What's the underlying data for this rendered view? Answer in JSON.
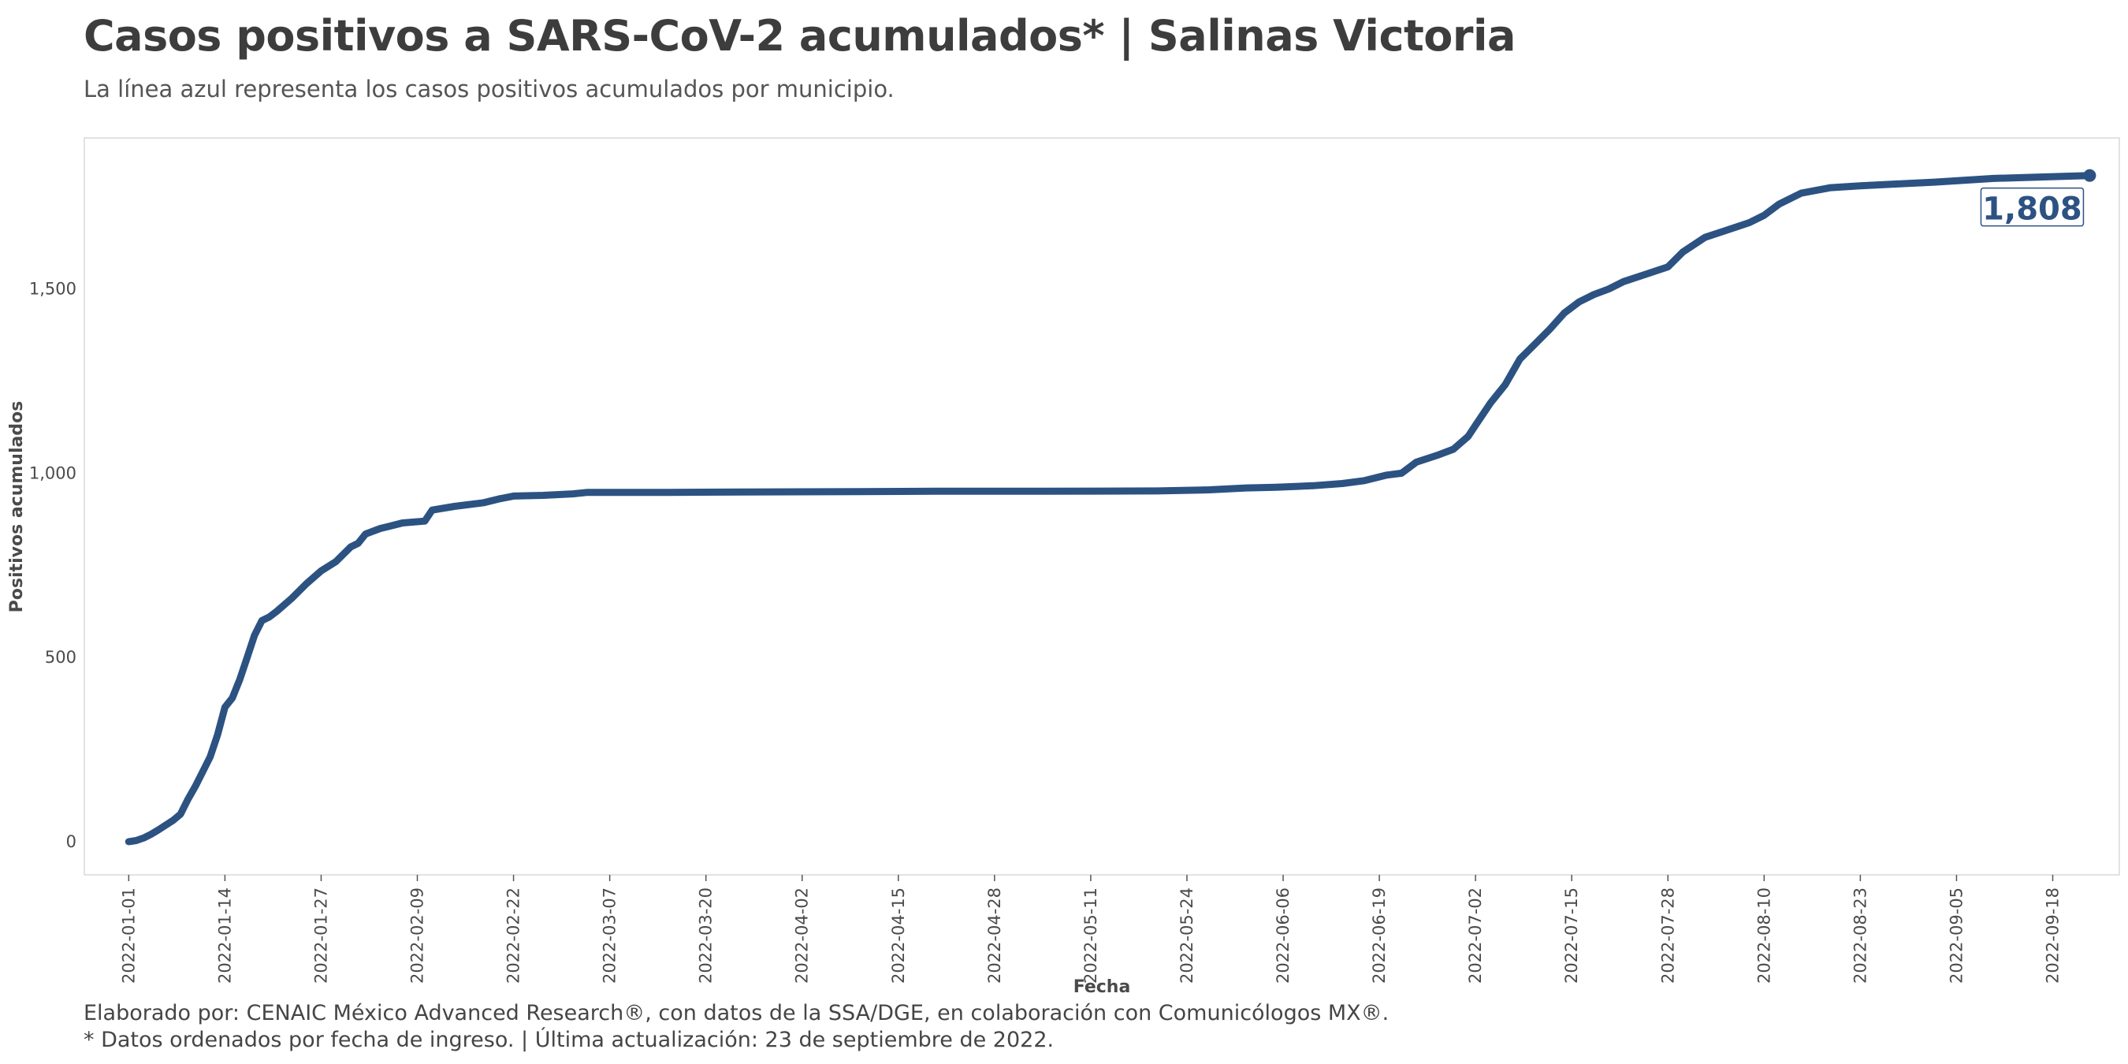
{
  "header": {
    "title": "Casos positivos a SARS-CoV-2 acumulados* | Salinas Victoria",
    "subtitle": "La línea azul representa los casos positivos acumulados por municipio."
  },
  "footer": {
    "caption_line1": "Elaborado por: CENAIC México Advanced Research®, con datos de la SSA/DGE, en colaboración con Comunicólogos MX®.",
    "caption_line2": "* Datos ordenados por fecha de ingreso. | Última actualización: 23 de septiembre de 2022."
  },
  "colors": {
    "line": "#2c5282",
    "panel_border": "#d8d8d8"
  },
  "chart_data": {
    "type": "line",
    "title": "Casos positivos a SARS-CoV-2 acumulados* | Salinas Victoria",
    "subtitle": "La línea azul representa los casos positivos acumulados por municipio.",
    "xlabel": "Fecha",
    "ylabel": "Positivos acumulados",
    "x_type": "date",
    "xlim": [
      "2021-12-26",
      "2022-09-27"
    ],
    "ylim": [
      -90,
      1910
    ],
    "x_ticks": [
      "2022-01-01",
      "2022-01-14",
      "2022-01-27",
      "2022-02-09",
      "2022-02-22",
      "2022-03-07",
      "2022-03-20",
      "2022-04-02",
      "2022-04-15",
      "2022-04-28",
      "2022-05-11",
      "2022-05-24",
      "2022-06-06",
      "2022-06-19",
      "2022-07-02",
      "2022-07-15",
      "2022-07-28",
      "2022-08-10",
      "2022-08-23",
      "2022-09-05",
      "2022-09-18"
    ],
    "y_ticks": [
      0,
      500,
      1000,
      1500
    ],
    "y_tick_labels": [
      "0",
      "500",
      "1,000",
      "1,500"
    ],
    "grid": false,
    "end_label": "1,808",
    "series": [
      {
        "x": [
          "2022-01-01",
          "2022-01-02",
          "2022-01-03",
          "2022-01-04",
          "2022-01-05",
          "2022-01-06",
          "2022-01-07",
          "2022-01-08",
          "2022-01-09",
          "2022-01-10",
          "2022-01-11",
          "2022-01-12",
          "2022-01-13",
          "2022-01-14",
          "2022-01-15",
          "2022-01-16",
          "2022-01-17",
          "2022-01-18",
          "2022-01-19",
          "2022-01-20",
          "2022-01-21",
          "2022-01-23",
          "2022-01-25",
          "2022-01-27",
          "2022-01-29",
          "2022-01-31",
          "2022-02-01",
          "2022-02-02",
          "2022-02-04",
          "2022-02-05",
          "2022-02-07",
          "2022-02-10",
          "2022-02-11",
          "2022-02-14",
          "2022-02-18",
          "2022-02-20",
          "2022-02-22",
          "2022-02-26",
          "2022-03-02",
          "2022-03-04",
          "2022-03-15",
          "2022-03-25",
          "2022-04-10",
          "2022-04-20",
          "2022-05-05",
          "2022-05-20",
          "2022-05-27",
          "2022-06-01",
          "2022-06-05",
          "2022-06-10",
          "2022-06-14",
          "2022-06-17",
          "2022-06-20",
          "2022-06-22",
          "2022-06-24",
          "2022-06-27",
          "2022-06-29",
          "2022-07-01",
          "2022-07-02",
          "2022-07-04",
          "2022-07-06",
          "2022-07-08",
          "2022-07-10",
          "2022-07-12",
          "2022-07-14",
          "2022-07-16",
          "2022-07-18",
          "2022-07-20",
          "2022-07-22",
          "2022-07-25",
          "2022-07-28",
          "2022-07-30",
          "2022-08-02",
          "2022-08-05",
          "2022-08-08",
          "2022-08-10",
          "2022-08-12",
          "2022-08-15",
          "2022-08-19",
          "2022-08-23",
          "2022-08-28",
          "2022-09-02",
          "2022-09-06",
          "2022-09-10",
          "2022-09-15",
          "2022-09-23"
        ],
        "y": [
          0,
          3,
          10,
          20,
          32,
          45,
          58,
          75,
          115,
          150,
          190,
          230,
          290,
          365,
          390,
          440,
          500,
          560,
          600,
          610,
          625,
          660,
          700,
          735,
          760,
          800,
          810,
          835,
          850,
          855,
          865,
          870,
          900,
          910,
          920,
          930,
          938,
          940,
          944,
          948,
          948,
          949,
          950,
          951,
          951,
          952,
          955,
          960,
          962,
          966,
          972,
          980,
          995,
          1000,
          1030,
          1050,
          1065,
          1100,
          1130,
          1190,
          1240,
          1310,
          1350,
          1390,
          1435,
          1465,
          1485,
          1500,
          1520,
          1540,
          1560,
          1600,
          1640,
          1660,
          1680,
          1700,
          1730,
          1760,
          1775,
          1780,
          1785,
          1790,
          1795,
          1800,
          1803,
          1808
        ]
      }
    ]
  }
}
